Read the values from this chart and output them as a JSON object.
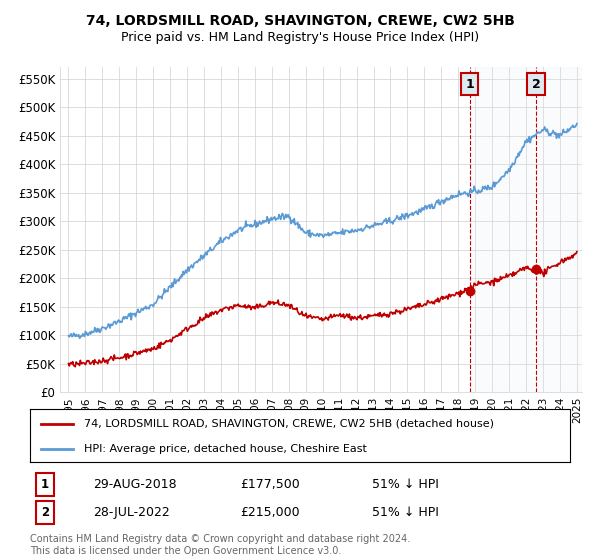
{
  "title": "74, LORDSMILL ROAD, SHAVINGTON, CREWE, CW2 5HB",
  "subtitle": "Price paid vs. HM Land Registry's House Price Index (HPI)",
  "ytick_values": [
    0,
    50000,
    100000,
    150000,
    200000,
    250000,
    300000,
    350000,
    400000,
    450000,
    500000,
    550000
  ],
  "ylim": [
    0,
    570000
  ],
  "xlim_start": 1994.5,
  "xlim_end": 2025.3,
  "legend_line1": "74, LORDSMILL ROAD, SHAVINGTON, CREWE, CW2 5HB (detached house)",
  "legend_line2": "HPI: Average price, detached house, Cheshire East",
  "label1_num": "1",
  "label1_date": "29-AUG-2018",
  "label1_price": "£177,500",
  "label1_hpi": "51% ↓ HPI",
  "label2_num": "2",
  "label2_date": "28-JUL-2022",
  "label2_price": "£215,000",
  "label2_hpi": "51% ↓ HPI",
  "footer": "Contains HM Land Registry data © Crown copyright and database right 2024.\nThis data is licensed under the Open Government Licence v3.0.",
  "hpi_color": "#5B9BD5",
  "price_color": "#C00000",
  "marker_color": "#C00000",
  "annotation_bg": "#DEEAF1",
  "shading_color": "#DEEAF1",
  "grid_color": "#D0D0D0",
  "background_color": "#ffffff",
  "sale1_x": 2018.67,
  "sale1_y": 177500,
  "sale2_x": 2022.58,
  "sale2_y": 215000
}
